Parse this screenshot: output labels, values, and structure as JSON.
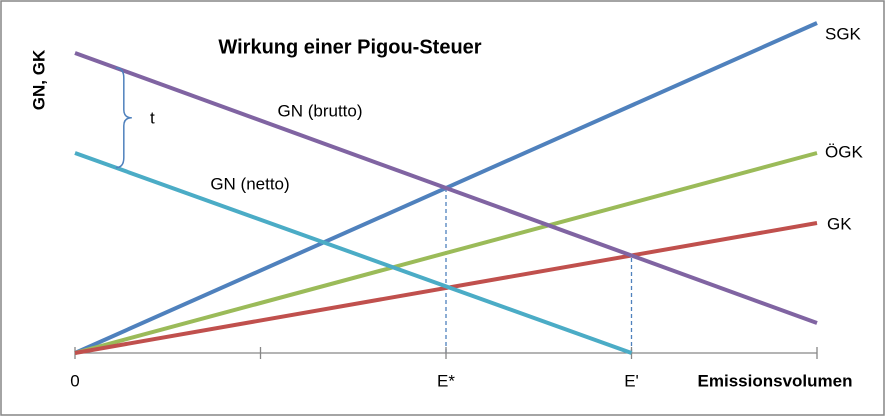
{
  "chart_data": {
    "type": "line",
    "title": "Wirkung einer Pigou-Steuer",
    "y_label": "GN, GK",
    "x_label": "Emissionsvolumen",
    "annotations": [
      "t"
    ],
    "xlim": [
      0,
      4
    ],
    "ylim": [
      0,
      35
    ],
    "xticks": [
      0,
      {
        "value": 1,
        "label": null
      },
      {
        "value": 2,
        "label": "E*"
      },
      {
        "value": 3,
        "label": "E'"
      },
      {
        "value": 4,
        "label": null
      }
    ],
    "series": [
      {
        "name": "SGK",
        "color": "#4f81bd",
        "x": [
          0,
          4
        ],
        "values": [
          0,
          33
        ]
      },
      {
        "name": "ÖGK",
        "color": "#9bbb59",
        "x": [
          0,
          4
        ],
        "values": [
          0,
          20
        ]
      },
      {
        "name": "GK",
        "color": "#c0504d",
        "x": [
          0,
          4
        ],
        "values": [
          0,
          13
        ]
      },
      {
        "name": "GN (brutto)",
        "color": "#8064a2",
        "x": [
          0,
          4
        ],
        "values": [
          30,
          3
        ]
      },
      {
        "name": "GN (netto)",
        "color": "#4bacc6",
        "x": [
          0,
          3
        ],
        "values": [
          20,
          0
        ]
      }
    ]
  }
}
